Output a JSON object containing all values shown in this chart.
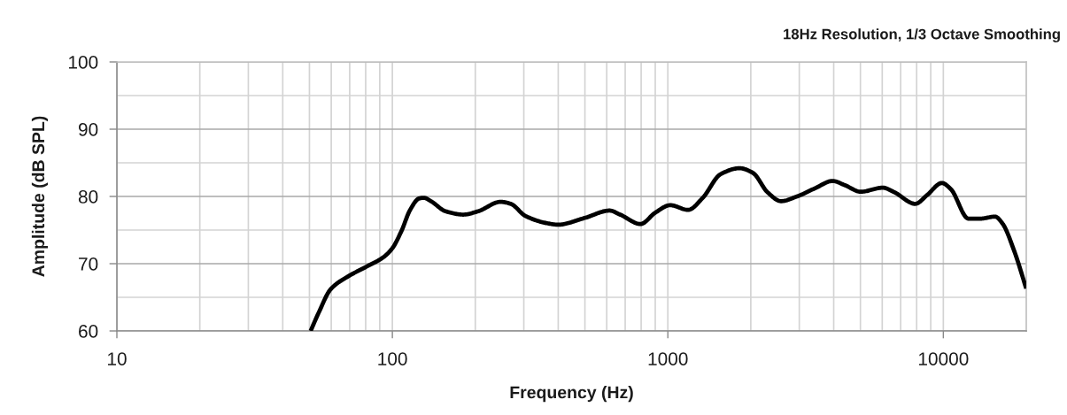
{
  "chart_data": {
    "type": "line",
    "title": "18Hz Resolution, 1/3 Octave Smoothing",
    "xlabel": "Frequency (Hz)",
    "ylabel": "Amplitude (dB SPL)",
    "log": "x",
    "grid": true,
    "xlim": [
      10,
      20000
    ],
    "ylim": [
      60,
      100
    ],
    "xticks": [
      10,
      {
        "value": 20,
        "label": null
      },
      {
        "value": 30,
        "label": null
      },
      {
        "value": 40,
        "label": null
      },
      {
        "value": 50,
        "label": null
      },
      {
        "value": 60,
        "label": null
      },
      {
        "value": 70,
        "label": null
      },
      {
        "value": 80,
        "label": null
      },
      {
        "value": 90,
        "label": null
      },
      100,
      {
        "value": 200,
        "label": null
      },
      {
        "value": 300,
        "label": null
      },
      {
        "value": 400,
        "label": null
      },
      {
        "value": 500,
        "label": null
      },
      {
        "value": 600,
        "label": null
      },
      {
        "value": 700,
        "label": null
      },
      {
        "value": 800,
        "label": null
      },
      {
        "value": 900,
        "label": null
      },
      1000,
      {
        "value": 2000,
        "label": null
      },
      {
        "value": 3000,
        "label": null
      },
      {
        "value": 4000,
        "label": null
      },
      {
        "value": 5000,
        "label": null
      },
      {
        "value": 6000,
        "label": null
      },
      {
        "value": 7000,
        "label": null
      },
      {
        "value": 8000,
        "label": null
      },
      {
        "value": 9000,
        "label": null
      },
      10000
    ],
    "yticks": [
      60,
      {
        "value": 65,
        "label": null
      },
      70,
      {
        "value": 75,
        "label": null
      },
      80,
      {
        "value": 85,
        "label": null
      },
      90,
      {
        "value": 95,
        "label": null
      },
      100
    ],
    "series": [
      {
        "color": "#000000",
        "x": [
          50.5,
          54,
          59.7,
          69,
          80,
          93,
          100,
          108,
          116,
          125,
          130,
          138,
          156,
          181,
          205,
          247,
          269,
          304,
          366,
          399,
          499,
          615,
          671,
          796,
          901,
          1020,
          1184,
          1339,
          1553,
          1821,
          2036,
          2303,
          2574,
          2944,
          3417,
          3963,
          4375,
          5013,
          6030,
          6654,
          7908,
          8730,
          9880,
          10640,
          12340,
          13620,
          15410,
          16380,
          18080,
          20000
        ],
        "values": [
          60.0,
          62.7,
          66.2,
          68.1,
          69.5,
          71.0,
          72.3,
          74.9,
          78.0,
          79.7,
          79.8,
          79.3,
          77.8,
          77.3,
          77.8,
          79.2,
          78.9,
          77.1,
          76.0,
          75.8,
          76.8,
          77.9,
          77.3,
          75.9,
          77.6,
          78.7,
          78.0,
          79.8,
          83.3,
          84.2,
          83.5,
          80.6,
          79.3,
          80.0,
          81.2,
          82.3,
          81.7,
          80.7,
          81.3,
          80.6,
          78.9,
          80.2,
          82.0,
          81.1,
          76.7,
          76.7,
          77.0,
          76.0,
          71.9,
          66.3
        ]
      }
    ]
  }
}
